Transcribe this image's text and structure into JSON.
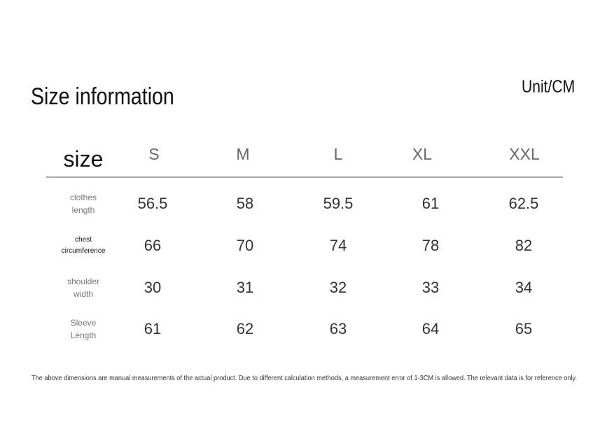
{
  "header": {
    "title": "Size information",
    "unit": "Unit/CM"
  },
  "table": {
    "columns": [
      "size",
      "S",
      "M",
      "L",
      "XL",
      "XXL"
    ],
    "rows": [
      {
        "label": [
          "clothes",
          "length"
        ],
        "values": [
          56.5,
          58,
          59.5,
          61,
          62.5
        ]
      },
      {
        "label": [
          "chest",
          "circumference"
        ],
        "values": [
          66,
          70,
          74,
          78,
          82
        ]
      },
      {
        "label": [
          "shoulder",
          "width"
        ],
        "values": [
          30,
          31,
          32,
          33,
          34
        ]
      },
      {
        "label": [
          "Sleeve",
          "Length"
        ],
        "values": [
          61,
          62,
          63,
          64,
          65
        ]
      }
    ]
  },
  "footnote": "The above dimensions are manual measurements of the actual product. Due to different calculation methods, a measurement error of 1-3CM is allowed. The relevant data is for reference only."
}
